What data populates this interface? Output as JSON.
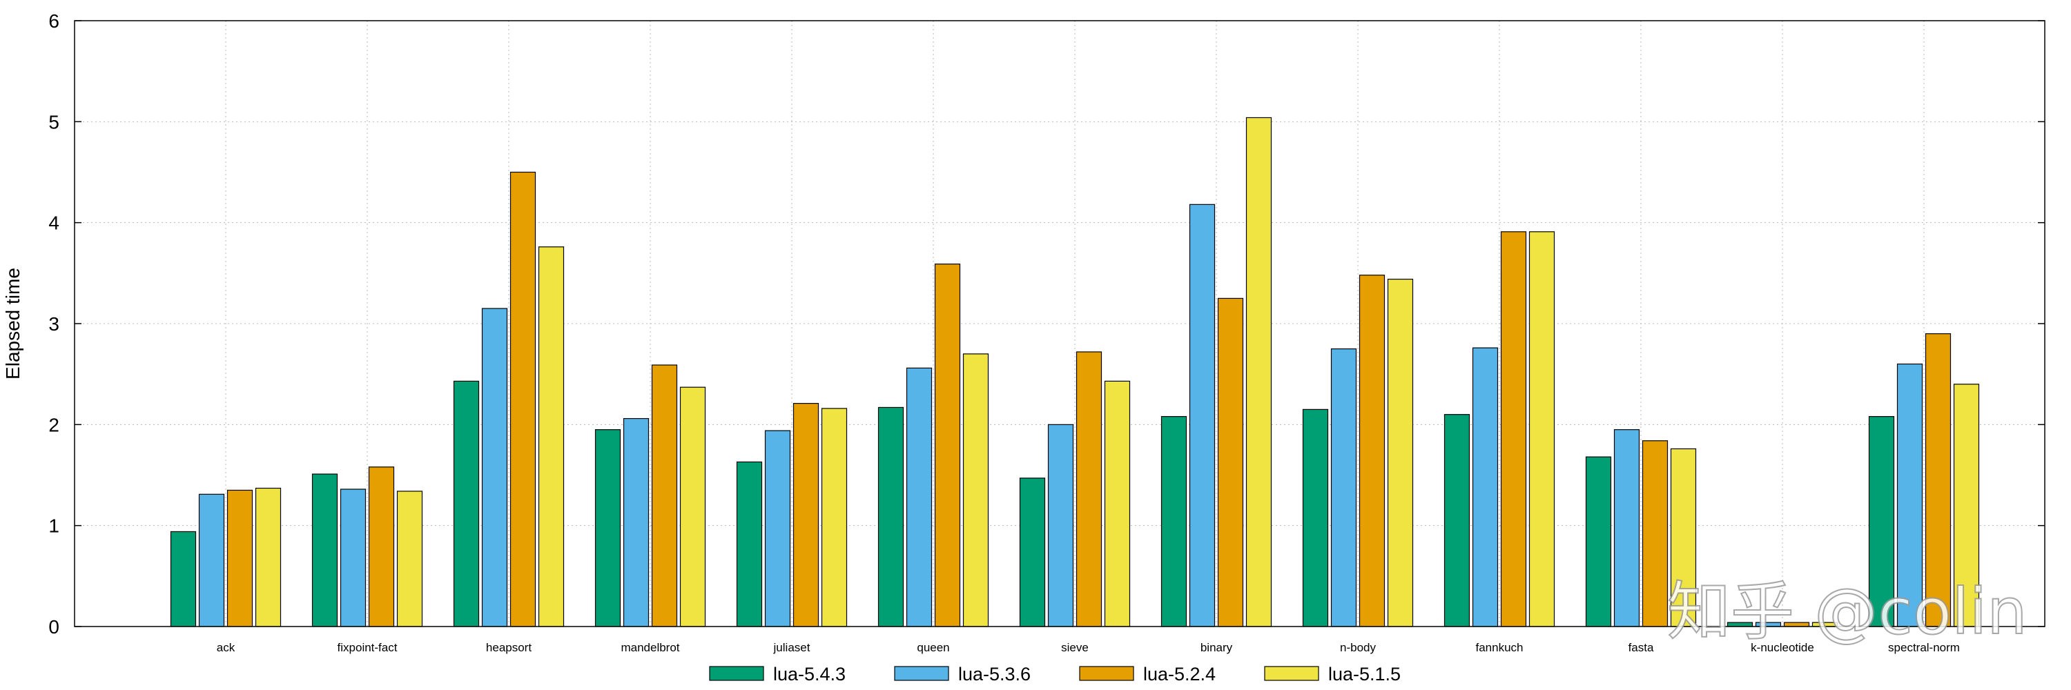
{
  "chart_data": {
    "type": "bar",
    "ylabel": "Elapsed time",
    "xlabel": "",
    "ylim": [
      0,
      6
    ],
    "yticks": [
      0,
      1,
      2,
      3,
      4,
      5,
      6
    ],
    "grid": true,
    "legend_position": "bottom",
    "categories": [
      "ack",
      "fixpoint-fact",
      "heapsort",
      "mandelbrot",
      "juliaset",
      "queen",
      "sieve",
      "binary",
      "n-body",
      "fannkuch",
      "fasta",
      "k-nucleotide",
      "spectral-norm"
    ],
    "series": [
      {
        "name": "lua-5.4.3",
        "color": "#009e73",
        "values": [
          0.94,
          1.51,
          2.43,
          1.95,
          1.63,
          2.17,
          1.47,
          2.08,
          2.15,
          2.1,
          1.68,
          0.04,
          2.08
        ]
      },
      {
        "name": "lua-5.3.6",
        "color": "#56b4e9",
        "values": [
          1.31,
          1.36,
          3.15,
          2.06,
          1.94,
          2.56,
          2.0,
          4.18,
          2.75,
          2.76,
          1.95,
          0.04,
          2.6
        ]
      },
      {
        "name": "lua-5.2.4",
        "color": "#e69f00",
        "values": [
          1.35,
          1.58,
          4.5,
          2.59,
          2.21,
          3.59,
          2.72,
          3.25,
          3.48,
          3.91,
          1.84,
          0.04,
          2.9
        ]
      },
      {
        "name": "lua-5.1.5",
        "color": "#f0e442",
        "values": [
          1.37,
          1.34,
          3.76,
          2.37,
          2.16,
          2.7,
          2.43,
          5.04,
          3.44,
          3.91,
          1.76,
          0.04,
          2.4
        ]
      }
    ]
  },
  "watermark": "知乎 @colin"
}
